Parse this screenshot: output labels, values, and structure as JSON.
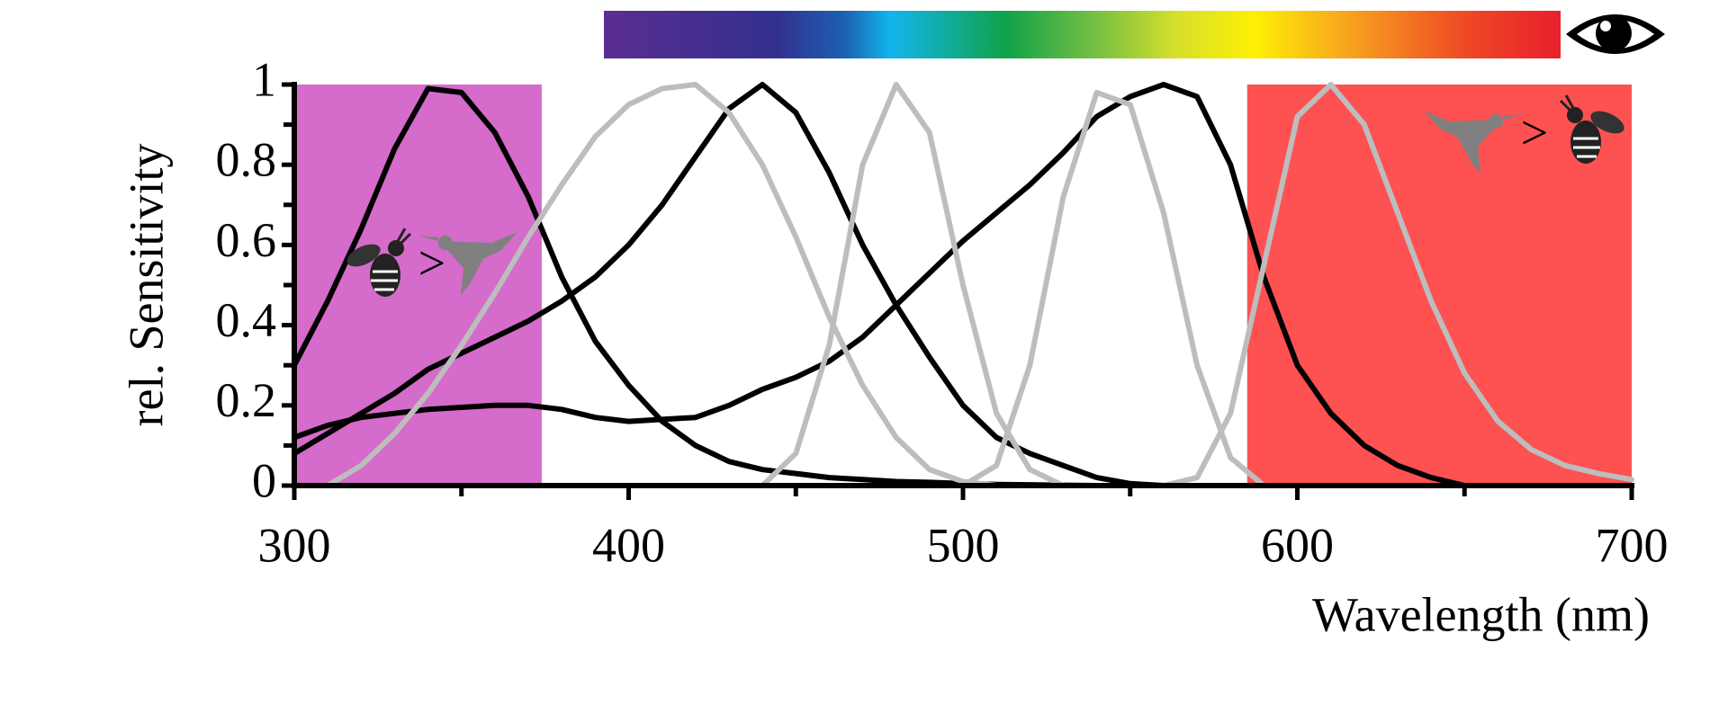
{
  "chart_data": {
    "type": "line",
    "x_label": "Wavelength (nm)",
    "y_label": "rel. Sensitivity",
    "x": [
      300,
      310,
      320,
      330,
      340,
      350,
      360,
      370,
      380,
      390,
      400,
      410,
      420,
      430,
      440,
      450,
      460,
      470,
      480,
      490,
      500,
      510,
      520,
      530,
      540,
      550,
      560,
      570,
      580,
      590,
      600,
      610,
      620,
      630,
      640,
      650,
      660,
      670,
      680,
      690,
      700
    ],
    "series": [
      {
        "color": "#000000",
        "values": [
          0.3,
          0.46,
          0.64,
          0.84,
          0.99,
          0.98,
          0.88,
          0.72,
          0.52,
          0.36,
          0.25,
          0.16,
          0.1,
          0.06,
          0.04,
          0.03,
          0.02,
          0.015,
          0.01,
          0.008,
          0.005,
          0.003,
          0.002,
          0.001,
          0,
          0,
          0,
          0,
          0,
          0,
          0,
          0,
          0,
          0,
          0,
          0,
          0,
          0,
          0,
          0,
          0
        ]
      },
      {
        "color": "#000000",
        "values": [
          0.08,
          0.13,
          0.18,
          0.23,
          0.29,
          0.33,
          0.37,
          0.41,
          0.46,
          0.52,
          0.6,
          0.7,
          0.82,
          0.94,
          1.0,
          0.93,
          0.78,
          0.6,
          0.45,
          0.32,
          0.2,
          0.12,
          0.08,
          0.05,
          0.02,
          0.005,
          0,
          0,
          0,
          0,
          0,
          0,
          0,
          0,
          0,
          0,
          0,
          0,
          0,
          0,
          0
        ]
      },
      {
        "color": "#000000",
        "values": [
          0.12,
          0.15,
          0.17,
          0.18,
          0.19,
          0.195,
          0.2,
          0.2,
          0.19,
          0.17,
          0.16,
          0.165,
          0.17,
          0.2,
          0.24,
          0.27,
          0.31,
          0.37,
          0.45,
          0.53,
          0.61,
          0.68,
          0.75,
          0.83,
          0.92,
          0.97,
          1.0,
          0.97,
          0.8,
          0.52,
          0.3,
          0.18,
          0.1,
          0.05,
          0.02,
          0,
          0,
          0,
          0,
          0,
          0
        ]
      },
      {
        "color": "#bdbdbd",
        "values": [
          null,
          0,
          0.05,
          0.13,
          0.23,
          0.35,
          0.48,
          0.62,
          0.75,
          0.87,
          0.95,
          0.99,
          1.0,
          0.93,
          0.8,
          0.62,
          0.42,
          0.25,
          0.12,
          0.04,
          0.01,
          0,
          null,
          null,
          null,
          null,
          null,
          null,
          null,
          null,
          null,
          null,
          null,
          null,
          null,
          null,
          null,
          null,
          null,
          null,
          null
        ]
      },
      {
        "color": "#bdbdbd",
        "values": [
          null,
          null,
          null,
          null,
          null,
          null,
          null,
          null,
          null,
          null,
          null,
          null,
          null,
          null,
          0,
          0.08,
          0.35,
          0.8,
          1.0,
          0.88,
          0.5,
          0.18,
          0.04,
          0,
          null,
          null,
          null,
          null,
          null,
          null,
          null,
          null,
          null,
          null,
          null,
          null,
          null,
          null,
          null,
          null,
          null
        ]
      },
      {
        "color": "#bdbdbd",
        "values": [
          null,
          null,
          null,
          null,
          null,
          null,
          null,
          null,
          null,
          null,
          null,
          null,
          null,
          null,
          null,
          null,
          null,
          null,
          null,
          null,
          0,
          0.05,
          0.3,
          0.72,
          0.98,
          0.95,
          0.68,
          0.3,
          0.07,
          0,
          null,
          null,
          null,
          null,
          null,
          null,
          null,
          null,
          null,
          null,
          null
        ]
      },
      {
        "color": "#bdbdbd",
        "values": [
          null,
          null,
          null,
          null,
          null,
          null,
          null,
          null,
          null,
          null,
          null,
          null,
          null,
          null,
          null,
          null,
          null,
          null,
          null,
          null,
          null,
          null,
          null,
          null,
          null,
          null,
          0,
          0.02,
          0.18,
          0.55,
          0.92,
          1.0,
          0.9,
          0.68,
          0.46,
          0.28,
          0.16,
          0.09,
          0.05,
          0.03,
          0.015
        ]
      }
    ],
    "shaded_regions": [
      {
        "xlim": [
          300,
          374
        ],
        "color": "#d56bca"
      },
      {
        "xlim": [
          585,
          700
        ],
        "color": "#fe5151"
      }
    ],
    "annotations": [
      ">",
      ">"
    ],
    "xlim": [
      300,
      700
    ],
    "ylim": [
      0,
      1
    ],
    "xticks": [
      300,
      400,
      500,
      600,
      700
    ],
    "xminorticks": [
      350,
      450,
      550,
      650
    ],
    "yticks": [
      0,
      0.2,
      0.4,
      0.6,
      0.8,
      1
    ],
    "yminorticks": [
      0.1,
      0.3,
      0.5,
      0.7,
      0.9
    ]
  }
}
